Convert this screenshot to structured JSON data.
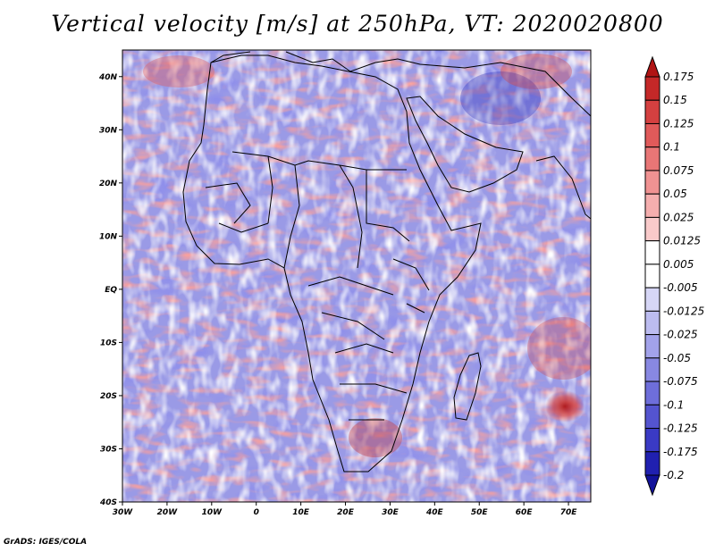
{
  "title": "Vertical velocity [m/s] at 250hPa, VT: 2020020800",
  "credit": "GrADS: IGES/COLA",
  "map": {
    "lon_labels": [
      "30W",
      "20W",
      "10W",
      "0",
      "10E",
      "20E",
      "30E",
      "40E",
      "50E",
      "60E",
      "70E"
    ],
    "lat_labels": [
      "40N",
      "30N",
      "20N",
      "10N",
      "EQ",
      "10S",
      "20S",
      "30S",
      "40S"
    ],
    "lon_range": [
      -30,
      75
    ],
    "lat_range": [
      -40,
      45
    ]
  },
  "colorbar": {
    "labels": [
      "0.175",
      "0.15",
      "0.125",
      "0.1",
      "0.075",
      "0.05",
      "0.025",
      "0.0125",
      "0.005",
      "-0.005",
      "-0.0125",
      "-0.025",
      "-0.05",
      "-0.075",
      "-0.1",
      "-0.125",
      "-0.175",
      "-0.2"
    ],
    "colors": [
      "#b01414",
      "#c42828",
      "#d44040",
      "#e05a5a",
      "#e87676",
      "#f09292",
      "#f5aeae",
      "#f9caca",
      "#ffffff",
      "#ffffff",
      "#d6d6f6",
      "#bcbcf0",
      "#a2a2ea",
      "#8888e2",
      "#6e6eda",
      "#5454cf",
      "#3a3ac4",
      "#2020b0",
      "#12129a"
    ]
  }
}
